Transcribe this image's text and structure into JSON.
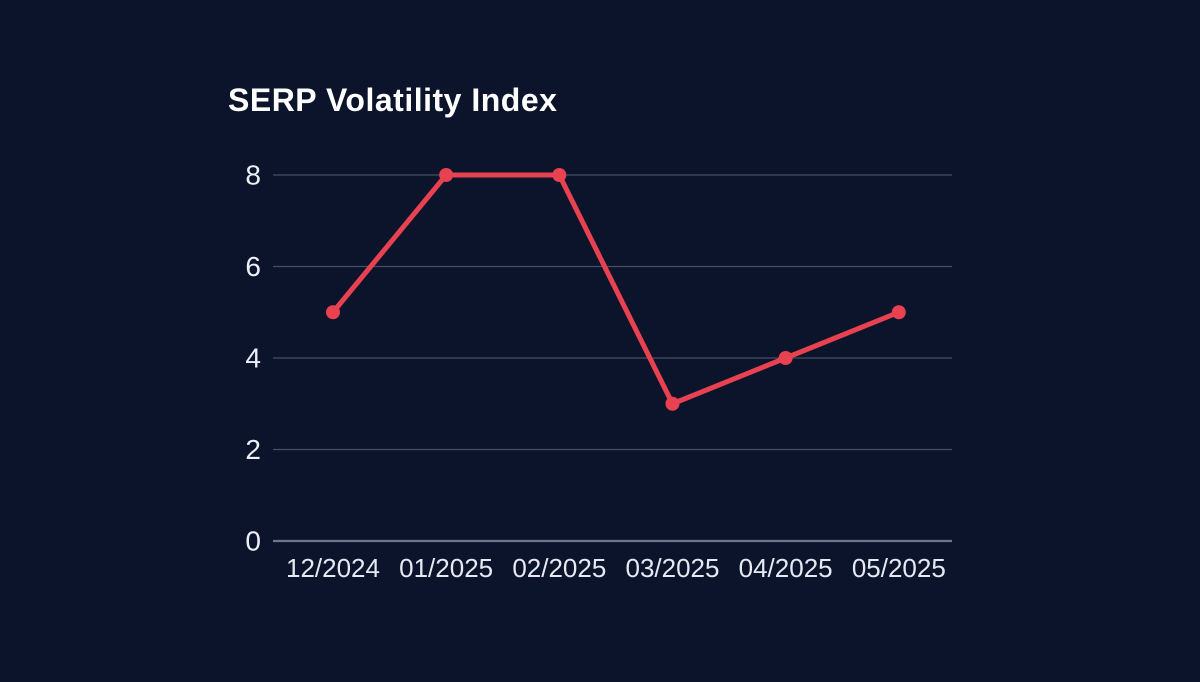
{
  "title": "SERP Volatility Index",
  "colors": {
    "background": "#0c142c",
    "title_text": "#ffffff",
    "axis_text": "#eceff5",
    "gridline": "#9aa2b8",
    "zero_line": "#78819c",
    "series_line": "#e8414f"
  },
  "chart_data": {
    "type": "line",
    "title": "SERP Volatility Index",
    "categories": [
      "12/2024",
      "01/2025",
      "02/2025",
      "03/2025",
      "04/2025",
      "05/2025"
    ],
    "series": [
      {
        "name": "SERP Volatility Index",
        "values": [
          5,
          8,
          8,
          3,
          4,
          5
        ],
        "color": "#e8414f"
      }
    ],
    "xlabel": "",
    "ylabel": "",
    "ylim": [
      0,
      8
    ],
    "yticks": [
      0,
      2,
      4,
      6,
      8
    ],
    "grid": true,
    "legend_position": "none",
    "marker": "circle"
  }
}
